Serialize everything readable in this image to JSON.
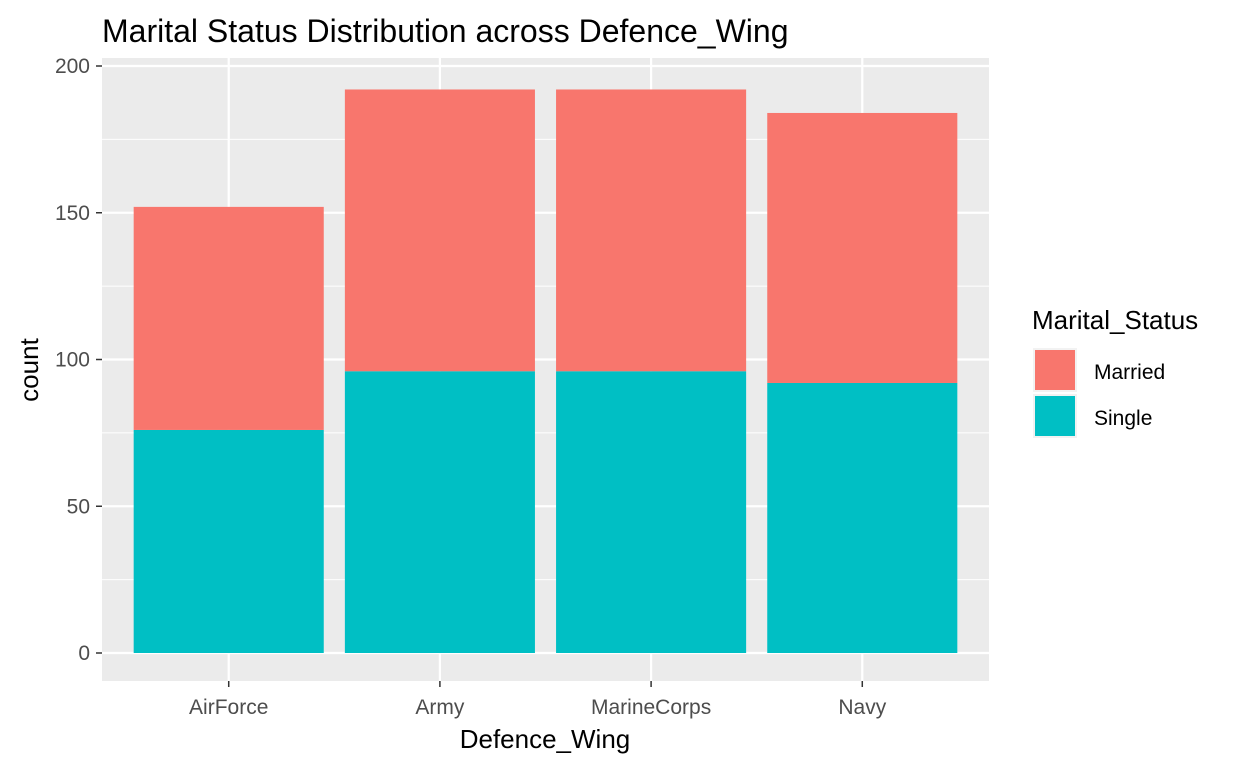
{
  "chart_data": {
    "type": "bar",
    "stacked": true,
    "title": "Marital Status Distribution across Defence_Wing",
    "xlabel": "Defence_Wing",
    "ylabel": "count",
    "categories": [
      "AirForce",
      "Army",
      "MarineCorps",
      "Navy"
    ],
    "series": [
      {
        "name": "Married",
        "color": "#F8766D",
        "values": [
          76,
          96,
          96,
          92
        ]
      },
      {
        "name": "Single",
        "color": "#00BFC4",
        "values": [
          76,
          96,
          96,
          92
        ]
      }
    ],
    "ylim": [
      0,
      200
    ],
    "yticks": [
      "0",
      "50",
      "100",
      "150",
      "200"
    ],
    "ytick_values": [
      0,
      50,
      100,
      150,
      200
    ],
    "grid": true,
    "legend": {
      "title": "Marital_Status",
      "placement": "right",
      "entries": [
        "Married",
        "Single"
      ]
    },
    "colors": {
      "panel": "#EBEBEB",
      "grid": "#FFFFFF"
    }
  }
}
